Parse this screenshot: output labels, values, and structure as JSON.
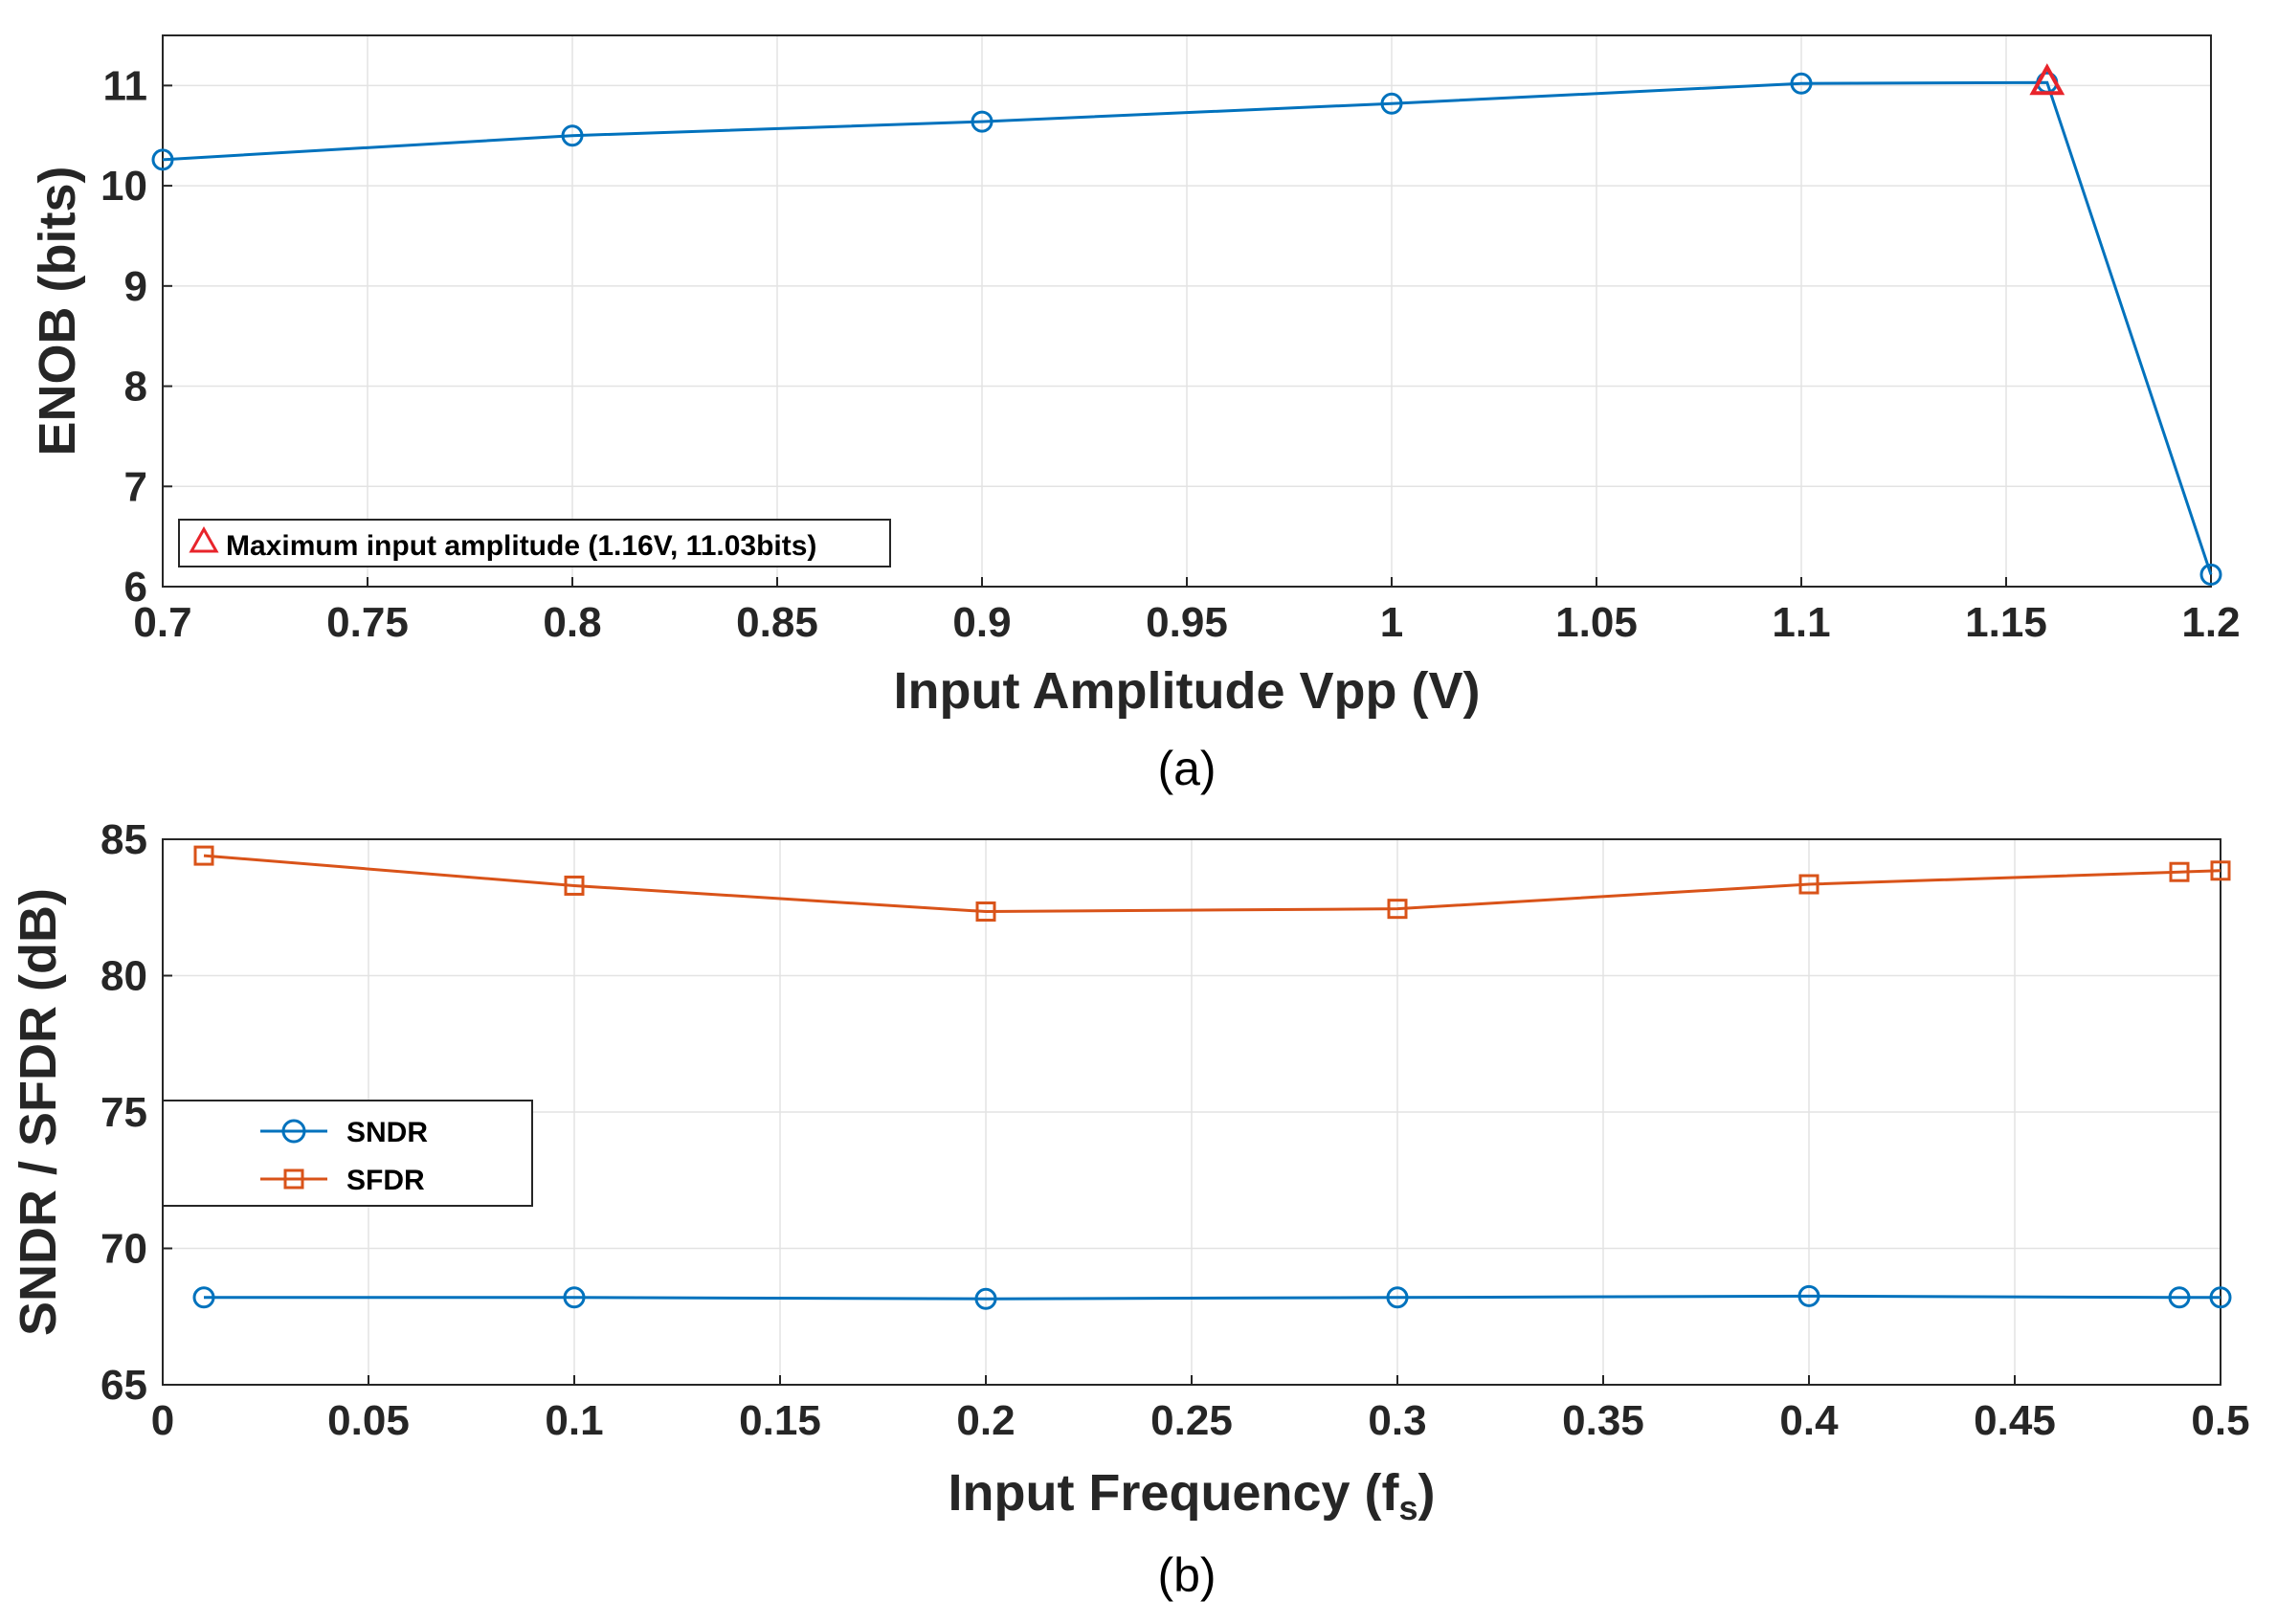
{
  "colors": {
    "sndr": "#0072BD",
    "sfdr": "#D95319",
    "marker_max": "#E8242B",
    "axis": "#262626",
    "grid": "#e3e3e3"
  },
  "chart_data": [
    {
      "id": "a",
      "type": "line",
      "caption": "(a)",
      "xlabel": "Input Amplitude Vpp (V)",
      "ylabel": "ENOB (bits)",
      "xlim": [
        0.7,
        1.2
      ],
      "ylim": [
        6,
        11.5
      ],
      "xticks": [
        "0.7",
        "0.75",
        "0.8",
        "0.85",
        "0.9",
        "0.95",
        "1",
        "1.05",
        "1.1",
        "1.15",
        "1.2"
      ],
      "yticks": [
        "6",
        "7",
        "8",
        "9",
        "10",
        "11"
      ],
      "grid": true,
      "series": [
        {
          "name": "ENOB",
          "marker": "circle",
          "x": [
            0.7,
            0.8,
            0.9,
            1.0,
            1.1,
            1.16,
            1.2
          ],
          "y": [
            10.26,
            10.5,
            10.64,
            10.82,
            11.02,
            11.03,
            6.12
          ]
        }
      ],
      "annotation": {
        "label": "Maximum input amplitude (1.16V, 11.03bits)",
        "marker": "triangle",
        "x": 1.16,
        "y": 11.03,
        "legend_location": "bottom-left"
      }
    },
    {
      "id": "b",
      "type": "line",
      "caption": "(b)",
      "xlabel": "Input  Frequency  (f",
      "xlabel_sub": "s",
      "xlabel_end": ")",
      "ylabel": "SNDR / SFDR (dB)",
      "xlim": [
        0,
        0.5
      ],
      "ylim": [
        65,
        85
      ],
      "xticks": [
        "0",
        "0.05",
        "0.1",
        "0.15",
        "0.2",
        "0.25",
        "0.3",
        "0.35",
        "0.4",
        "0.45",
        "0.5"
      ],
      "yticks": [
        "65",
        "70",
        "75",
        "80",
        "85"
      ],
      "grid": true,
      "legend_location": "middle-left",
      "x": [
        0.01,
        0.1,
        0.2,
        0.3,
        0.4,
        0.49,
        0.5
      ],
      "series": [
        {
          "name": "SNDR",
          "marker": "circle",
          "values": [
            68.2,
            68.2,
            68.15,
            68.2,
            68.25,
            68.2,
            68.2
          ]
        },
        {
          "name": "SFDR",
          "marker": "square",
          "values": [
            84.4,
            83.3,
            82.35,
            82.45,
            83.35,
            83.8,
            83.85
          ]
        }
      ]
    }
  ]
}
